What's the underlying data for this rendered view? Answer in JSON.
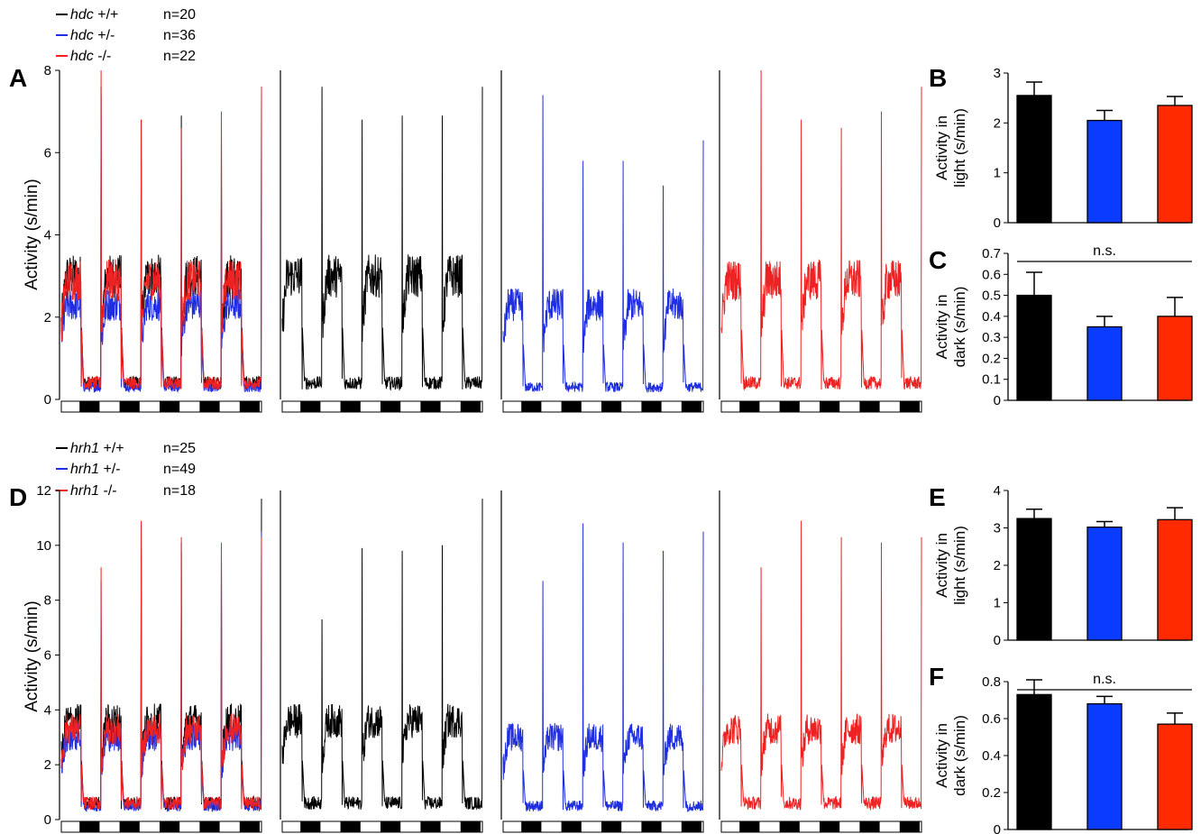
{
  "figure": {
    "legend_top": [
      {
        "gene": "hdc",
        "genotype": "+/+",
        "n": "n=20",
        "color": "#000000"
      },
      {
        "gene": "hdc",
        "genotype": "+/-",
        "n": "n=36",
        "color": "#1f2ee0"
      },
      {
        "gene": "hdc",
        "genotype": "-/-",
        "n": "n=22",
        "color": "#ee2222"
      }
    ],
    "legend_bottom": [
      {
        "gene": "hrh1",
        "genotype": "+/+",
        "n": "n=25",
        "color": "#000000"
      },
      {
        "gene": "hrh1",
        "genotype": "+/-",
        "n": "n=49",
        "color": "#1f2ee0"
      },
      {
        "gene": "hrh1",
        "genotype": "-/-",
        "n": "n=18",
        "color": "#ee2222"
      }
    ],
    "significance_label": "n.s."
  },
  "chart_data": [
    {
      "panel": "A",
      "type": "line",
      "ylabel": "Activity (s/min)",
      "ylim": [
        0,
        8
      ],
      "yticks": [
        "0",
        "2",
        "4",
        "6",
        "8"
      ],
      "light_dark_cycles": 5,
      "series": [
        {
          "name": "hdc +/+",
          "color": "#000000",
          "baseline": 0.4,
          "day_plateau": 3.0,
          "spike_peaks": [
            7.6,
            6.8,
            6.9,
            6.9,
            7.6
          ]
        },
        {
          "name": "hdc +/-",
          "color": "#1f2ee0",
          "baseline": 0.3,
          "day_plateau": 2.3,
          "spike_peaks": [
            7.4,
            5.8,
            5.8,
            5.2,
            6.3
          ]
        },
        {
          "name": "hdc -/-",
          "color": "#ee2222",
          "baseline": 0.4,
          "day_plateau": 2.9,
          "spike_peaks": [
            8.0,
            6.8,
            6.6,
            7.0,
            7.6
          ]
        }
      ]
    },
    {
      "panel": "B",
      "type": "bar",
      "ylabel": "Activity in light (s/min)",
      "ylim": [
        0,
        3
      ],
      "yticks": [
        "0",
        "1",
        "2",
        "3"
      ],
      "categories": [
        "hdc +/+",
        "hdc +/-",
        "hdc -/-"
      ],
      "values": [
        2.55,
        2.05,
        2.35
      ],
      "errors": [
        0.27,
        0.2,
        0.18
      ],
      "colors": [
        "#000000",
        "#0a3cff",
        "#ff2a00"
      ]
    },
    {
      "panel": "C",
      "type": "bar",
      "ylabel": "Activity in dark (s/min)",
      "ylim": [
        0,
        0.7
      ],
      "yticks": [
        "0",
        "0.1",
        "0.2",
        "0.3",
        "0.4",
        "0.5",
        "0.6",
        "0.7"
      ],
      "categories": [
        "hdc +/+",
        "hdc +/-",
        "hdc -/-"
      ],
      "values": [
        0.5,
        0.35,
        0.4
      ],
      "errors": [
        0.11,
        0.05,
        0.09
      ],
      "colors": [
        "#000000",
        "#0a3cff",
        "#ff2a00"
      ],
      "annotation": "n.s."
    },
    {
      "panel": "D",
      "type": "line",
      "ylabel": "Activity (s/min)",
      "ylim": [
        0,
        12
      ],
      "yticks": [
        "0",
        "2",
        "4",
        "6",
        "8",
        "10",
        "12"
      ],
      "light_dark_cycles": 5,
      "series": [
        {
          "name": "hrh1 +/+",
          "color": "#000000",
          "baseline": 0.6,
          "day_plateau": 3.6,
          "spike_peaks": [
            7.3,
            9.9,
            9.8,
            10.0,
            11.7
          ]
        },
        {
          "name": "hrh1 +/-",
          "color": "#1f2ee0",
          "baseline": 0.5,
          "day_plateau": 3.0,
          "spike_peaks": [
            8.7,
            10.8,
            10.1,
            9.8,
            10.5
          ]
        },
        {
          "name": "hrh1 -/-",
          "color": "#ee2222",
          "baseline": 0.6,
          "day_plateau": 3.3,
          "spike_peaks": [
            9.2,
            10.9,
            10.3,
            10.1,
            10.3
          ]
        }
      ]
    },
    {
      "panel": "E",
      "type": "bar",
      "ylabel": "Activity in light (s/min)",
      "ylim": [
        0,
        4
      ],
      "yticks": [
        "0",
        "1",
        "2",
        "3",
        "4"
      ],
      "categories": [
        "hrh1 +/+",
        "hrh1 +/-",
        "hrh1 -/-"
      ],
      "values": [
        3.25,
        3.02,
        3.22
      ],
      "errors": [
        0.25,
        0.15,
        0.32
      ],
      "colors": [
        "#000000",
        "#0a3cff",
        "#ff2a00"
      ]
    },
    {
      "panel": "F",
      "type": "bar",
      "ylabel": "Activity in dark (s/min)",
      "ylim": [
        0,
        0.8
      ],
      "yticks": [
        "0",
        "0.2",
        "0.4",
        "0.6",
        "0.8"
      ],
      "categories": [
        "hrh1 +/+",
        "hrh1 +/-",
        "hrh1 -/-"
      ],
      "values": [
        0.73,
        0.68,
        0.57
      ],
      "errors": [
        0.08,
        0.04,
        0.06
      ],
      "colors": [
        "#000000",
        "#0a3cff",
        "#ff2a00"
      ],
      "annotation": "n.s."
    }
  ]
}
